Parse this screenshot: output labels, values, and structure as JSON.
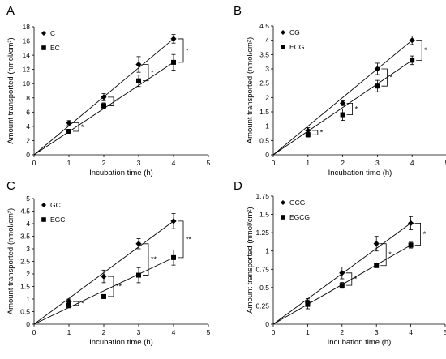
{
  "chart_data": [
    {
      "panel": "A",
      "type": "scatter",
      "xlabel": "Incubation time (h)",
      "ylabel": "Amount transported (nmol/cm²)",
      "xlim": [
        0,
        5
      ],
      "ylim": [
        0,
        18
      ],
      "x_ticks": [
        "0",
        "1",
        "2",
        "3",
        "4",
        "5"
      ],
      "y_ticks": [
        "0",
        "2",
        "4",
        "6",
        "8",
        "10",
        "12",
        "14",
        "16",
        "18"
      ],
      "legend_position": "top-left",
      "series": [
        {
          "name": "C",
          "marker": "diamond",
          "x": [
            0,
            1,
            2,
            3,
            4
          ],
          "y": [
            0,
            4.5,
            8.1,
            12.7,
            16.3
          ],
          "err": [
            0,
            0.3,
            0.5,
            1.1,
            0.6
          ]
        },
        {
          "name": "EC",
          "marker": "square",
          "x": [
            0,
            1,
            2,
            3,
            4
          ],
          "y": [
            0,
            3.3,
            6.9,
            10.4,
            13.0
          ],
          "err": [
            0,
            0.2,
            0.4,
            0.8,
            1.1
          ]
        }
      ],
      "significance": [
        {
          "x": 1,
          "label": "*"
        },
        {
          "x": 2,
          "label": "*"
        },
        {
          "x": 3,
          "label": "*"
        },
        {
          "x": 4,
          "label": "*"
        }
      ]
    },
    {
      "panel": "B",
      "type": "scatter",
      "xlabel": "Incubation time (h)",
      "ylabel": "Amount transported (nmol/cm²)",
      "xlim": [
        0,
        5
      ],
      "ylim": [
        0,
        4.5
      ],
      "x_ticks": [
        "0",
        "1",
        "2",
        "3",
        "4",
        "5"
      ],
      "y_ticks": [
        "0",
        "0.5",
        "1",
        "1.5",
        "2",
        "2.5",
        "3",
        "3.5",
        "4",
        "4.5"
      ],
      "legend_position": "top-left",
      "series": [
        {
          "name": "CG",
          "marker": "diamond",
          "x": [
            0,
            1,
            2,
            3,
            4
          ],
          "y": [
            0,
            0.85,
            1.8,
            3.0,
            4.0
          ],
          "err": [
            0,
            0.1,
            0.08,
            0.2,
            0.15
          ]
        },
        {
          "name": "ECG",
          "marker": "square",
          "x": [
            0,
            1,
            2,
            3,
            4
          ],
          "y": [
            0,
            0.7,
            1.4,
            2.4,
            3.3
          ],
          "err": [
            0,
            0.08,
            0.2,
            0.2,
            0.15
          ]
        }
      ],
      "significance": [
        {
          "x": 1,
          "label": "*"
        },
        {
          "x": 2,
          "label": "*"
        },
        {
          "x": 3,
          "label": "*"
        },
        {
          "x": 4,
          "label": "*"
        }
      ]
    },
    {
      "panel": "C",
      "type": "scatter",
      "xlabel": "Incubation time (h)",
      "ylabel": "Amount transported (nmol/cm²)",
      "xlim": [
        0,
        5
      ],
      "ylim": [
        0,
        5
      ],
      "x_ticks": [
        "0",
        "1",
        "2",
        "3",
        "4",
        "5"
      ],
      "y_ticks": [
        "0",
        "0.5",
        "1",
        "1.5",
        "2",
        "2.5",
        "3",
        "3.5",
        "4",
        "4.5",
        "5"
      ],
      "legend_position": "top-left",
      "series": [
        {
          "name": "GC",
          "marker": "diamond",
          "x": [
            0,
            1,
            2,
            3,
            4
          ],
          "y": [
            0,
            0.9,
            1.9,
            3.2,
            4.1
          ],
          "err": [
            0,
            0.1,
            0.25,
            0.2,
            0.3
          ]
        },
        {
          "name": "EGC",
          "marker": "square",
          "x": [
            0,
            1,
            2,
            3,
            4
          ],
          "y": [
            0,
            0.75,
            1.1,
            1.95,
            2.65
          ],
          "err": [
            0,
            0.1,
            0.08,
            0.3,
            0.3
          ]
        }
      ],
      "significance": [
        {
          "x": 1,
          "label": "*"
        },
        {
          "x": 2,
          "label": "**"
        },
        {
          "x": 3,
          "label": "**"
        },
        {
          "x": 4,
          "label": "**"
        }
      ]
    },
    {
      "panel": "D",
      "type": "scatter",
      "xlabel": "Incubation time (h)",
      "ylabel": "Amount transported (nmol/cm²)",
      "xlim": [
        0,
        5
      ],
      "ylim": [
        0,
        1.75
      ],
      "x_ticks": [
        "0",
        "1",
        "2",
        "3",
        "4",
        "5"
      ],
      "y_ticks": [
        "0",
        "0.25",
        "0.5",
        "0.75",
        "1",
        "1.25",
        "1.5",
        "1.75"
      ],
      "legend_position": "top-left",
      "series": [
        {
          "name": "GCG",
          "marker": "diamond",
          "x": [
            0,
            1,
            2,
            3,
            4
          ],
          "y": [
            0,
            0.3,
            0.7,
            1.1,
            1.38
          ],
          "err": [
            0,
            0.05,
            0.08,
            0.1,
            0.09
          ]
        },
        {
          "name": "EGCG",
          "marker": "square",
          "x": [
            0,
            1,
            2,
            3,
            4
          ],
          "y": [
            0,
            0.27,
            0.53,
            0.8,
            1.08
          ],
          "err": [
            0,
            0.06,
            0.04,
            0.01,
            0.04
          ]
        }
      ],
      "significance": [
        {
          "x": 2,
          "label": "*"
        },
        {
          "x": 3,
          "label": "*"
        },
        {
          "x": 4,
          "label": "*"
        }
      ]
    }
  ]
}
